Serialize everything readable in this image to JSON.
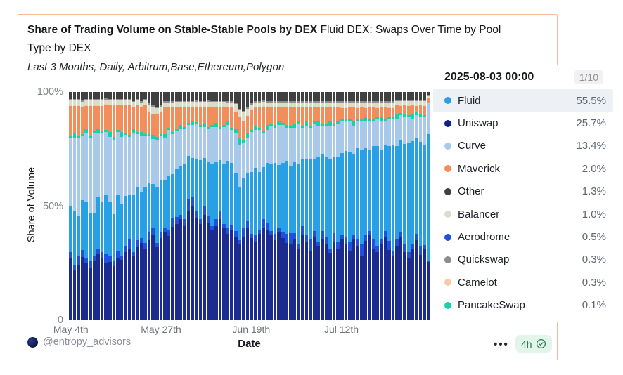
{
  "header": {
    "title_bold": "Share of Trading Volume on Stable-Stable Pools by DEX",
    "title_regular_line1": "Fluid DEX: Swaps Over Time by Pool",
    "title_regular_line2": "Type by DEX",
    "subtitle": "Last 3 Months, Daily, Arbitrum,Base,Ethereum,Polygon"
  },
  "tooltip": {
    "date": "2025-08-03 00:00",
    "page": "1/10",
    "rows": [
      {
        "name": "Fluid",
        "value": "55.5%",
        "color": "#27a0e5",
        "highlighted": true
      },
      {
        "name": "Uniswap",
        "value": "25.7%",
        "color": "#12208c",
        "highlighted": false
      },
      {
        "name": "Curve",
        "value": "13.4%",
        "color": "#a9c9ea",
        "highlighted": false
      },
      {
        "name": "Maverick",
        "value": "2.0%",
        "color": "#f28d5c",
        "highlighted": false
      },
      {
        "name": "Other",
        "value": "1.3%",
        "color": "#404040",
        "highlighted": false
      },
      {
        "name": "Balancer",
        "value": "1.0%",
        "color": "#dcdccb",
        "highlighted": false
      },
      {
        "name": "Aerodrome",
        "value": "0.5%",
        "color": "#2050dd",
        "highlighted": false
      },
      {
        "name": "Quickswap",
        "value": "0.3%",
        "color": "#8d8d8d",
        "highlighted": false
      },
      {
        "name": "Camelot",
        "value": "0.3%",
        "color": "#f6caa8",
        "highlighted": false
      },
      {
        "name": "PancakeSwap",
        "value": "0.1%",
        "color": "#16d2a9",
        "highlighted": false
      }
    ]
  },
  "chart_data": {
    "type": "bar",
    "stacked": true,
    "normalized_percent": true,
    "x_start_date": "2025-05-04",
    "x_end_date": "2025-08-03",
    "num_days": 92,
    "xlabel": "Date",
    "ylabel": "Share of Volume",
    "ylim": [
      0,
      100
    ],
    "yticks": [
      {
        "label": "100%",
        "pos": 1
      },
      {
        "label": "50%",
        "pos": 0.5
      },
      {
        "label": "0",
        "pos": 0
      }
    ],
    "xticks": [
      {
        "label": "May 4th",
        "day": 0
      },
      {
        "label": "May 27th",
        "day": 23
      },
      {
        "label": "Jun 19th",
        "day": 46
      },
      {
        "label": "Jul 12th",
        "day": 69
      }
    ],
    "stack_order": "bottom-to-top",
    "series": [
      {
        "name": "Uniswap",
        "color": "#1b2b8f",
        "values": [
          27,
          22,
          24,
          28,
          25,
          23,
          26,
          29,
          27,
          25,
          26,
          24,
          28,
          27,
          30,
          32,
          29,
          33,
          35,
          32,
          36,
          38,
          34,
          37,
          40,
          38,
          42,
          44,
          46,
          43,
          50,
          52,
          47,
          44,
          48,
          45,
          41,
          43,
          46,
          42,
          39,
          41,
          38,
          36,
          40,
          42,
          37,
          35,
          39,
          43,
          41,
          38,
          36,
          40,
          37,
          35,
          34,
          36,
          32,
          38,
          35,
          31,
          37,
          33,
          36,
          34,
          30,
          35,
          32,
          36,
          34,
          31,
          36,
          33,
          29,
          35,
          38,
          32,
          30,
          34,
          37,
          31,
          28,
          33,
          36,
          30,
          27,
          32,
          35,
          29,
          31,
          25.7
        ]
      },
      {
        "name": "Aerodrome",
        "color": "#2050dd",
        "values": [
          3,
          2,
          4,
          3,
          2,
          3,
          2,
          2,
          3,
          4,
          3,
          2,
          3,
          2,
          3,
          4,
          2,
          3,
          2,
          3,
          4,
          3,
          2,
          3,
          2,
          3,
          4,
          3,
          2,
          3,
          5,
          4,
          3,
          2,
          4,
          3,
          2,
          3,
          4,
          2,
          3,
          2,
          3,
          2,
          4,
          3,
          2,
          3,
          2,
          4,
          3,
          2,
          3,
          2,
          3,
          4,
          5,
          3,
          2,
          4,
          3,
          5,
          3,
          2,
          4,
          3,
          2,
          4,
          3,
          2,
          3,
          4,
          2,
          3,
          5,
          3,
          2,
          4,
          3,
          2,
          3,
          4,
          2,
          3,
          2,
          4,
          3,
          2,
          3,
          4,
          2,
          0.5
        ]
      },
      {
        "name": "Fluid",
        "color": "#27a0e5",
        "values": [
          20,
          24,
          18,
          22,
          25,
          21,
          19,
          23,
          22,
          26,
          24,
          21,
          25,
          23,
          22,
          20,
          26,
          24,
          21,
          25,
          22,
          20,
          26,
          23,
          21,
          24,
          20,
          22,
          22,
          25,
          20,
          18,
          24,
          27,
          22,
          25,
          28,
          26,
          23,
          27,
          30,
          28,
          27,
          25,
          24,
          22,
          28,
          30,
          26,
          24,
          27,
          30,
          32,
          28,
          31,
          33,
          30,
          32,
          36,
          30,
          34,
          36,
          32,
          38,
          34,
          36,
          40,
          34,
          38,
          36,
          38,
          40,
          36,
          40,
          42,
          38,
          36,
          42,
          44,
          40,
          38,
          42,
          46,
          42,
          40,
          44,
          48,
          46,
          42,
          46,
          44,
          55.5
        ]
      },
      {
        "name": "Curve",
        "color": "#a9c9ea",
        "values": [
          30,
          32,
          34,
          28,
          30,
          33,
          35,
          28,
          30,
          27,
          29,
          33,
          28,
          30,
          27,
          26,
          28,
          24,
          25,
          23,
          21,
          20,
          22,
          20,
          19,
          21,
          18,
          17,
          17,
          16,
          14,
          15,
          16,
          15,
          14,
          15,
          17,
          16,
          14,
          17,
          16,
          15,
          18,
          20,
          17,
          16,
          18,
          17,
          19,
          16,
          15,
          17,
          16,
          18,
          17,
          15,
          17,
          15,
          18,
          14,
          15,
          14,
          16,
          14,
          13,
          14,
          15,
          14,
          15,
          14,
          13,
          14,
          13,
          12,
          13,
          12,
          13,
          11,
          12,
          13,
          11,
          12,
          11,
          12,
          11,
          12,
          11,
          10,
          10,
          11,
          12,
          13.4
        ]
      },
      {
        "name": "PancakeSwap",
        "color": "#16d2a9",
        "values": [
          1,
          2,
          1,
          1,
          2,
          1,
          1,
          2,
          1,
          1,
          2,
          1,
          1,
          2,
          1,
          1,
          2,
          1,
          2,
          1,
          1,
          2,
          1,
          1,
          2,
          1,
          1,
          1,
          2,
          1,
          1,
          2,
          1,
          1,
          2,
          1,
          1,
          2,
          1,
          1,
          2,
          1,
          2,
          3,
          1,
          2,
          1,
          2,
          1,
          1,
          2,
          1,
          1,
          2,
          1,
          1,
          1,
          2,
          1,
          1,
          2,
          1,
          1,
          2,
          1,
          1,
          2,
          1,
          1,
          1,
          1,
          1,
          2,
          1,
          1,
          2,
          1,
          1,
          1,
          2,
          1,
          1,
          1,
          2,
          1,
          1,
          1,
          2,
          1,
          1,
          1,
          0.1
        ]
      },
      {
        "name": "Maverick",
        "color": "#f28d5c",
        "values": [
          13,
          12,
          13,
          12,
          10,
          13,
          11,
          10,
          11,
          11,
          12,
          14,
          11,
          12,
          12,
          13,
          10,
          12,
          11,
          13,
          10,
          9,
          11,
          10,
          12,
          9,
          11,
          10,
          8,
          9,
          7,
          6,
          7,
          8,
          7,
          9,
          8,
          7,
          9,
          8,
          6,
          9,
          8,
          10,
          9,
          8,
          9,
          8,
          9,
          11,
          8,
          7,
          8,
          6,
          7,
          8,
          8,
          7,
          6,
          8,
          6,
          8,
          6,
          6,
          7,
          7,
          6,
          7,
          6,
          5,
          5,
          5,
          6,
          5,
          5,
          4,
          5,
          5,
          4,
          4,
          5,
          4,
          4,
          4,
          3,
          4,
          4,
          4,
          3,
          4,
          4,
          2
        ]
      },
      {
        "name": "Camelot",
        "color": "#f6caa8",
        "values": [
          0.4,
          0.4,
          0.4,
          0.4,
          0.4,
          0.4,
          0.4,
          0.4,
          0.4,
          0.4,
          0.4,
          0.4,
          0.4,
          0.4,
          0.4,
          0.4,
          0.4,
          0.4,
          0.4,
          0.4,
          0.4,
          0.4,
          0.4,
          0.4,
          0.4,
          0.4,
          0.4,
          0.4,
          0.4,
          0.4,
          0.4,
          0.4,
          0.4,
          0.4,
          0.4,
          0.4,
          0.4,
          0.4,
          0.4,
          0.4,
          0.4,
          0.4,
          0.4,
          0.4,
          0.4,
          0.4,
          0.4,
          0.4,
          0.4,
          0.4,
          0.4,
          0.4,
          0.4,
          0.4,
          0.4,
          0.4,
          0.4,
          0.4,
          0.4,
          0.4,
          0.4,
          0.4,
          0.4,
          0.4,
          0.4,
          0.4,
          0.4,
          0.4,
          0.4,
          0.4,
          0.4,
          0.4,
          0.4,
          0.4,
          0.4,
          0.4,
          0.4,
          0.4,
          0.4,
          0.4,
          0.4,
          0.4,
          0.4,
          0.4,
          0.4,
          0.4,
          0.4,
          0.4,
          0.4,
          0.4,
          0.4,
          0.3
        ]
      },
      {
        "name": "Balancer",
        "color": "#dcdccb",
        "values": [
          2,
          2,
          2,
          2,
          2,
          2,
          2,
          2,
          2,
          2,
          2,
          2,
          2,
          2,
          2,
          2,
          2,
          2,
          2,
          2,
          3,
          3,
          2,
          2,
          2,
          2,
          2,
          2,
          2,
          2,
          2,
          2,
          2,
          2,
          2,
          2,
          2,
          2,
          2,
          2,
          2,
          2,
          3,
          3,
          4,
          3,
          2,
          2,
          2,
          2,
          2,
          2,
          2,
          2,
          2,
          2,
          2,
          2,
          2,
          2,
          2,
          2,
          2,
          2,
          2,
          2,
          2,
          2,
          2,
          2,
          2,
          2,
          2,
          2,
          2,
          2,
          2,
          2,
          2,
          2,
          2,
          2,
          2,
          1.5,
          1.5,
          1.5,
          1.5,
          1.5,
          1.5,
          1.5,
          1.5,
          1
        ]
      },
      {
        "name": "Quickswap",
        "color": "#8d8d8d",
        "values": [
          0.6,
          0.6,
          0.6,
          0.6,
          0.6,
          0.6,
          0.6,
          0.6,
          0.6,
          0.6,
          0.6,
          0.6,
          0.6,
          0.6,
          0.6,
          0.6,
          0.6,
          0.6,
          0.6,
          0.6,
          0.6,
          0.6,
          0.6,
          0.6,
          0.6,
          0.6,
          0.6,
          0.6,
          0.6,
          0.6,
          0.6,
          0.6,
          0.6,
          0.6,
          0.6,
          0.6,
          0.6,
          0.6,
          0.6,
          0.6,
          0.6,
          0.6,
          0.6,
          0.6,
          0.6,
          0.6,
          0.6,
          0.6,
          0.6,
          0.6,
          0.6,
          0.6,
          0.6,
          0.6,
          0.6,
          0.6,
          0.6,
          0.6,
          0.6,
          0.6,
          0.6,
          0.6,
          0.6,
          0.6,
          0.6,
          0.6,
          0.6,
          0.6,
          0.6,
          0.6,
          0.6,
          0.6,
          0.6,
          0.6,
          0.6,
          0.6,
          0.6,
          0.6,
          0.6,
          0.6,
          0.6,
          0.6,
          0.6,
          0.6,
          0.6,
          0.6,
          0.6,
          0.6,
          0.6,
          0.6,
          0.6,
          0.3
        ]
      },
      {
        "name": "Other",
        "color": "#404040",
        "values": [
          3,
          3,
          3,
          3.6,
          3,
          3,
          3,
          3,
          3,
          2.6,
          3,
          3,
          3,
          3,
          3,
          3,
          4,
          3,
          4,
          3,
          5,
          6,
          7,
          6,
          4,
          4,
          4,
          4,
          4,
          4,
          4,
          4,
          4,
          4,
          4,
          4,
          4,
          4,
          4,
          4,
          4,
          4,
          5,
          8,
          9,
          7,
          5,
          4,
          4,
          4,
          4,
          4,
          4,
          4,
          4,
          4,
          4,
          4,
          4,
          4,
          4,
          4,
          4,
          4,
          4,
          4,
          4,
          4,
          4,
          4,
          4,
          4,
          4,
          4,
          4,
          4,
          4,
          4,
          4,
          4,
          4,
          4,
          4,
          3.5,
          3.5,
          3.5,
          3.5,
          3.5,
          3.5,
          3.5,
          3.5,
          1.3
        ]
      }
    ]
  },
  "footer": {
    "handle": "@entropy_advisors",
    "menu": "•••",
    "badge": "4h"
  },
  "colors": {
    "card_border": "#f3bd9b",
    "highlight_row": "#edf0f5",
    "badge_bg": "#e3f4ea",
    "badge_text": "#267a50"
  }
}
